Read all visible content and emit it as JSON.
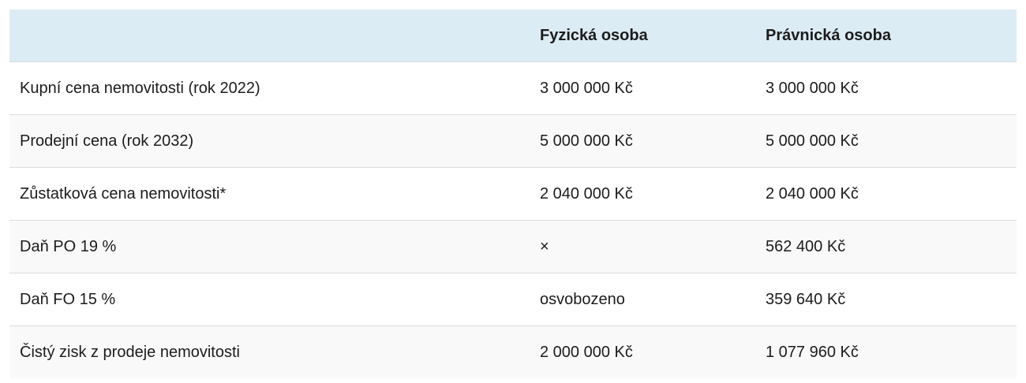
{
  "table": {
    "headers": [
      "",
      "Fyzická osoba",
      "Právnická osoba"
    ],
    "rows": [
      [
        "Kupní cena nemovitosti (rok 2022)",
        "3 000 000 Kč",
        "3 000 000 Kč"
      ],
      [
        "Prodejní cena (rok 2032)",
        "5 000 000 Kč",
        "5 000 000 Kč"
      ],
      [
        "Zůstatková cena nemovitosti*",
        "2 040 000 Kč",
        "2 040 000 Kč"
      ],
      [
        "Daň PO 19 %",
        "×",
        "562 400 Kč"
      ],
      [
        "Daň FO 15 %",
        "osvobozeno",
        "359 640 Kč"
      ],
      [
        "Čistý zisk z prodeje nemovitosti",
        "2 000 000 Kč",
        "1 077 960 Kč"
      ]
    ],
    "colors": {
      "header_bg": "#dcecf5",
      "stripe_bg": "#f9f9f9"
    }
  }
}
